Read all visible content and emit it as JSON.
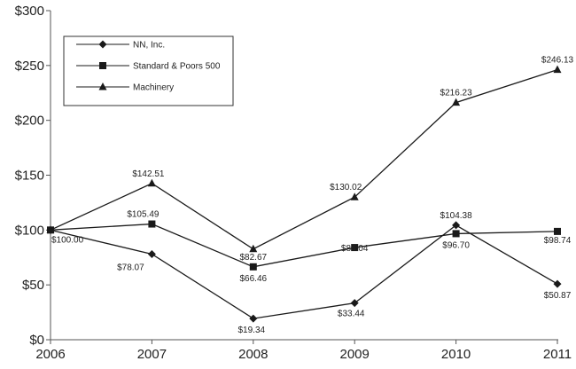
{
  "chart_data": {
    "type": "line",
    "x": [
      "2006",
      "2007",
      "2008",
      "2009",
      "2010",
      "2011"
    ],
    "ylim": [
      0,
      300
    ],
    "yticks": [
      "$0",
      "$50",
      "$100",
      "$150",
      "$200",
      "$250",
      "$300"
    ],
    "grid": false,
    "legend_position": "top-left",
    "series": [
      {
        "name": "NN, Inc.",
        "marker": "diamond",
        "values": [
          100.0,
          78.07,
          19.34,
          33.44,
          104.38,
          50.87
        ],
        "labels": [
          "$100.00",
          "$78.07",
          "$19.34",
          "$33.44",
          "$104.38",
          "$50.87"
        ]
      },
      {
        "name": "Standard & Poors 500",
        "marker": "square",
        "values": [
          100.0,
          105.49,
          66.46,
          84.04,
          96.7,
          98.74
        ],
        "labels": [
          "",
          "$105.49",
          "$66.46",
          "$84.04",
          "$96.70",
          "$98.74"
        ]
      },
      {
        "name": "Machinery",
        "marker": "triangle",
        "values": [
          100.0,
          142.51,
          82.67,
          130.02,
          216.23,
          246.13
        ],
        "labels": [
          "",
          "$142.51",
          "$82.67",
          "$130.02",
          "$216.23",
          "$246.13"
        ]
      }
    ],
    "colors": {
      "line": "#1a1a1a",
      "axis": "#555555",
      "text": "#222222"
    }
  }
}
